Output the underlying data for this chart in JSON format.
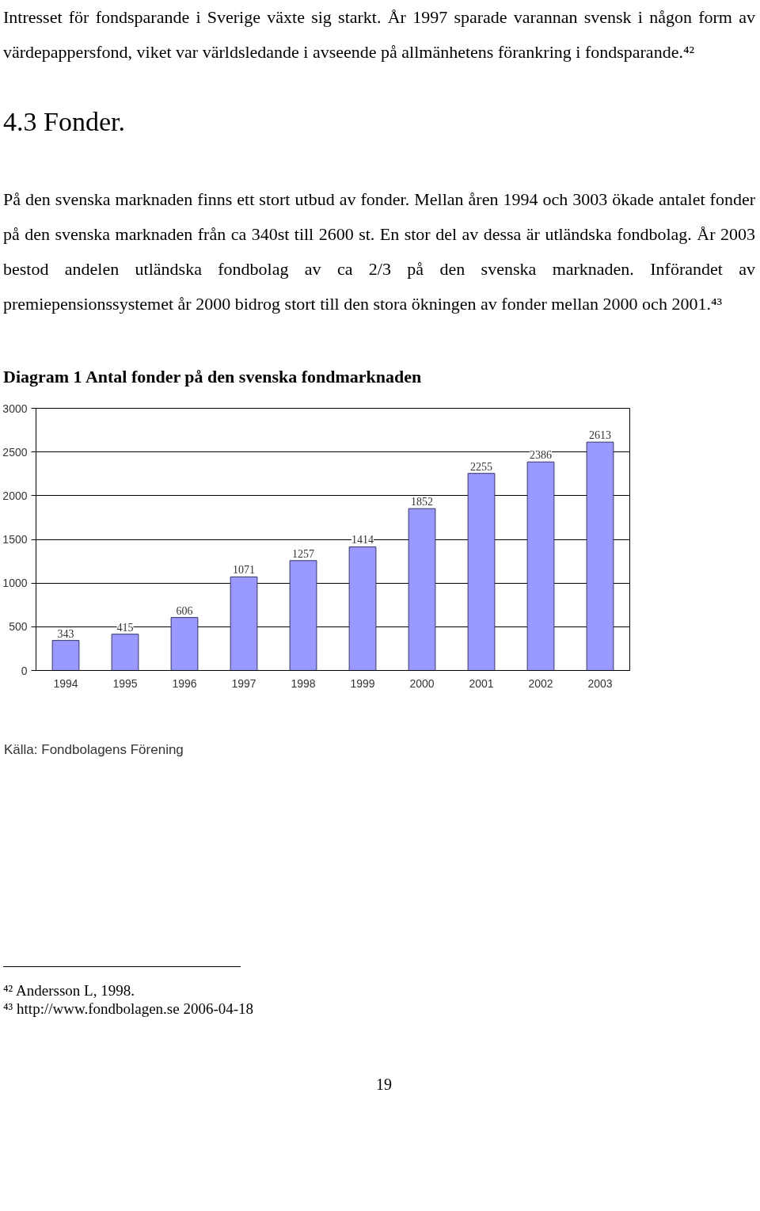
{
  "chart_data": {
    "type": "bar",
    "title": "Diagram 1 Antal fonder på den svenska fondmarknaden",
    "categories": [
      "1994",
      "1995",
      "1996",
      "1997",
      "1998",
      "1999",
      "2000",
      "2001",
      "2002",
      "2003"
    ],
    "values": [
      343,
      415,
      606,
      1071,
      1257,
      1414,
      1852,
      2255,
      2386,
      2613
    ],
    "color": "#9999ff",
    "ylim": [
      0,
      3000
    ],
    "yticks": [
      0,
      500,
      1000,
      1500,
      2000,
      2500,
      3000
    ],
    "grid": "y",
    "data_labels": true,
    "annotations": [
      "Intresset för fondsparande i Sverige växte sig starkt. År 1997 sparade varannan svensk i någon form av värdepappersfond, viket var världsledande i avseende på allmänhetens förankring i fondsparande.⁴²",
      "4.3   Fonder.",
      "På den svenska marknaden finns ett stort utbud av fonder. Mellan åren 1994 och 3003 ökade antalet fonder på den svenska marknaden från ca 340st till 2600 st. En stor del av dessa är utländska fondbolag. År 2003 bestod andelen utländska fondbolag av ca 2/3 på den svenska marknaden.  Införandet av premiepensionssystemet år 2000 bidrog stort till den stora ökningen av fonder mellan 2000 och 2001.⁴³",
      "Källa: Fondbolagens Förening",
      "⁴² Andersson L, 1998.",
      "⁴³ http://www.fondbolagen.se 2006-04-18",
      "19"
    ]
  }
}
